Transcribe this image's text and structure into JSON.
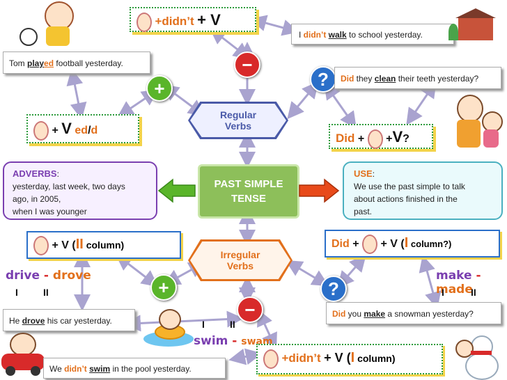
{
  "center": {
    "line1": "PAST SIMPLE",
    "line2": "TENSE"
  },
  "regular": {
    "line1": "Regular",
    "line2": "Verbs"
  },
  "irregular": {
    "line1": "Irregular",
    "line2": "Verbs"
  },
  "reg_neg_formula": {
    "part1": "+didn’t",
    "part2": "+ V"
  },
  "reg_neg_example": {
    "pre": "I ",
    "aux": "didn’t",
    "verb": "walk",
    "post": " to school yesterday."
  },
  "reg_pos_example": {
    "pre": "Tom ",
    "verb_stem": "play",
    "verb_end": "ed",
    "post": " football yesterday."
  },
  "reg_pos_formula": {
    "plus": "+",
    "v": "V",
    "ed": "ed",
    "slash": "/",
    "d": "d"
  },
  "reg_q_example": {
    "aux": "Did",
    "pre": " they ",
    "verb": "clean",
    "post": " their teeth yesterday?"
  },
  "reg_q_formula": {
    "aux": "Did",
    "plus1": "+",
    "plus2": "+",
    "v": "V",
    "q": "?"
  },
  "adverbs": {
    "title": "ADVERBS",
    "colon": ":",
    "line1": "yesterday, last week, two days",
    "line2": "ago, in 2005,",
    "line3": "when I was younger"
  },
  "use": {
    "title": "USE",
    "colon": ":",
    "line1": "We use the past simple to talk",
    "line2": "about actions finished in the",
    "line3": "past."
  },
  "irr_pos_formula": {
    "plus": "+",
    "v": "V (",
    "roman": "II",
    "col": " column)"
  },
  "irr_q_formula": {
    "aux": "Did",
    "plus1": "+",
    "v": "+ V (",
    "roman": "I",
    "col": " column?)"
  },
  "irr_neg_formula": {
    "part1": "+didn’t",
    "v": "+ V (",
    "roman": "I",
    "col": " column)"
  },
  "pair_drive": {
    "w1": "drive",
    "dash": "-",
    "w2": "drove",
    "r1": "I",
    "r2": "II"
  },
  "pair_make": {
    "w1": "make",
    "dash": "-",
    "w2": "made",
    "r1": "I",
    "r2": "II"
  },
  "pair_swim": {
    "w1": "swim",
    "dash": "-",
    "w2": "swam",
    "r1": "I",
    "r2": "II"
  },
  "irr_pos_example": {
    "pre": "He ",
    "verb": "drove",
    "post": " his car yesterday."
  },
  "irr_q_example": {
    "aux": "Did",
    "pre": " you ",
    "verb": "make",
    "post": " a snowman yesterday?"
  },
  "irr_neg_example": {
    "pre": "We ",
    "aux": "didn’t",
    "verb": "swim",
    "post": " in the pool yesterday."
  },
  "signs": {
    "minus": "−",
    "plus": "+",
    "question": "?"
  },
  "colors": {
    "green": "#2a9a3a",
    "red": "#d82a2a",
    "blue": "#2a6fc9",
    "orange": "#e2701c",
    "purple": "#7a3fb0"
  }
}
